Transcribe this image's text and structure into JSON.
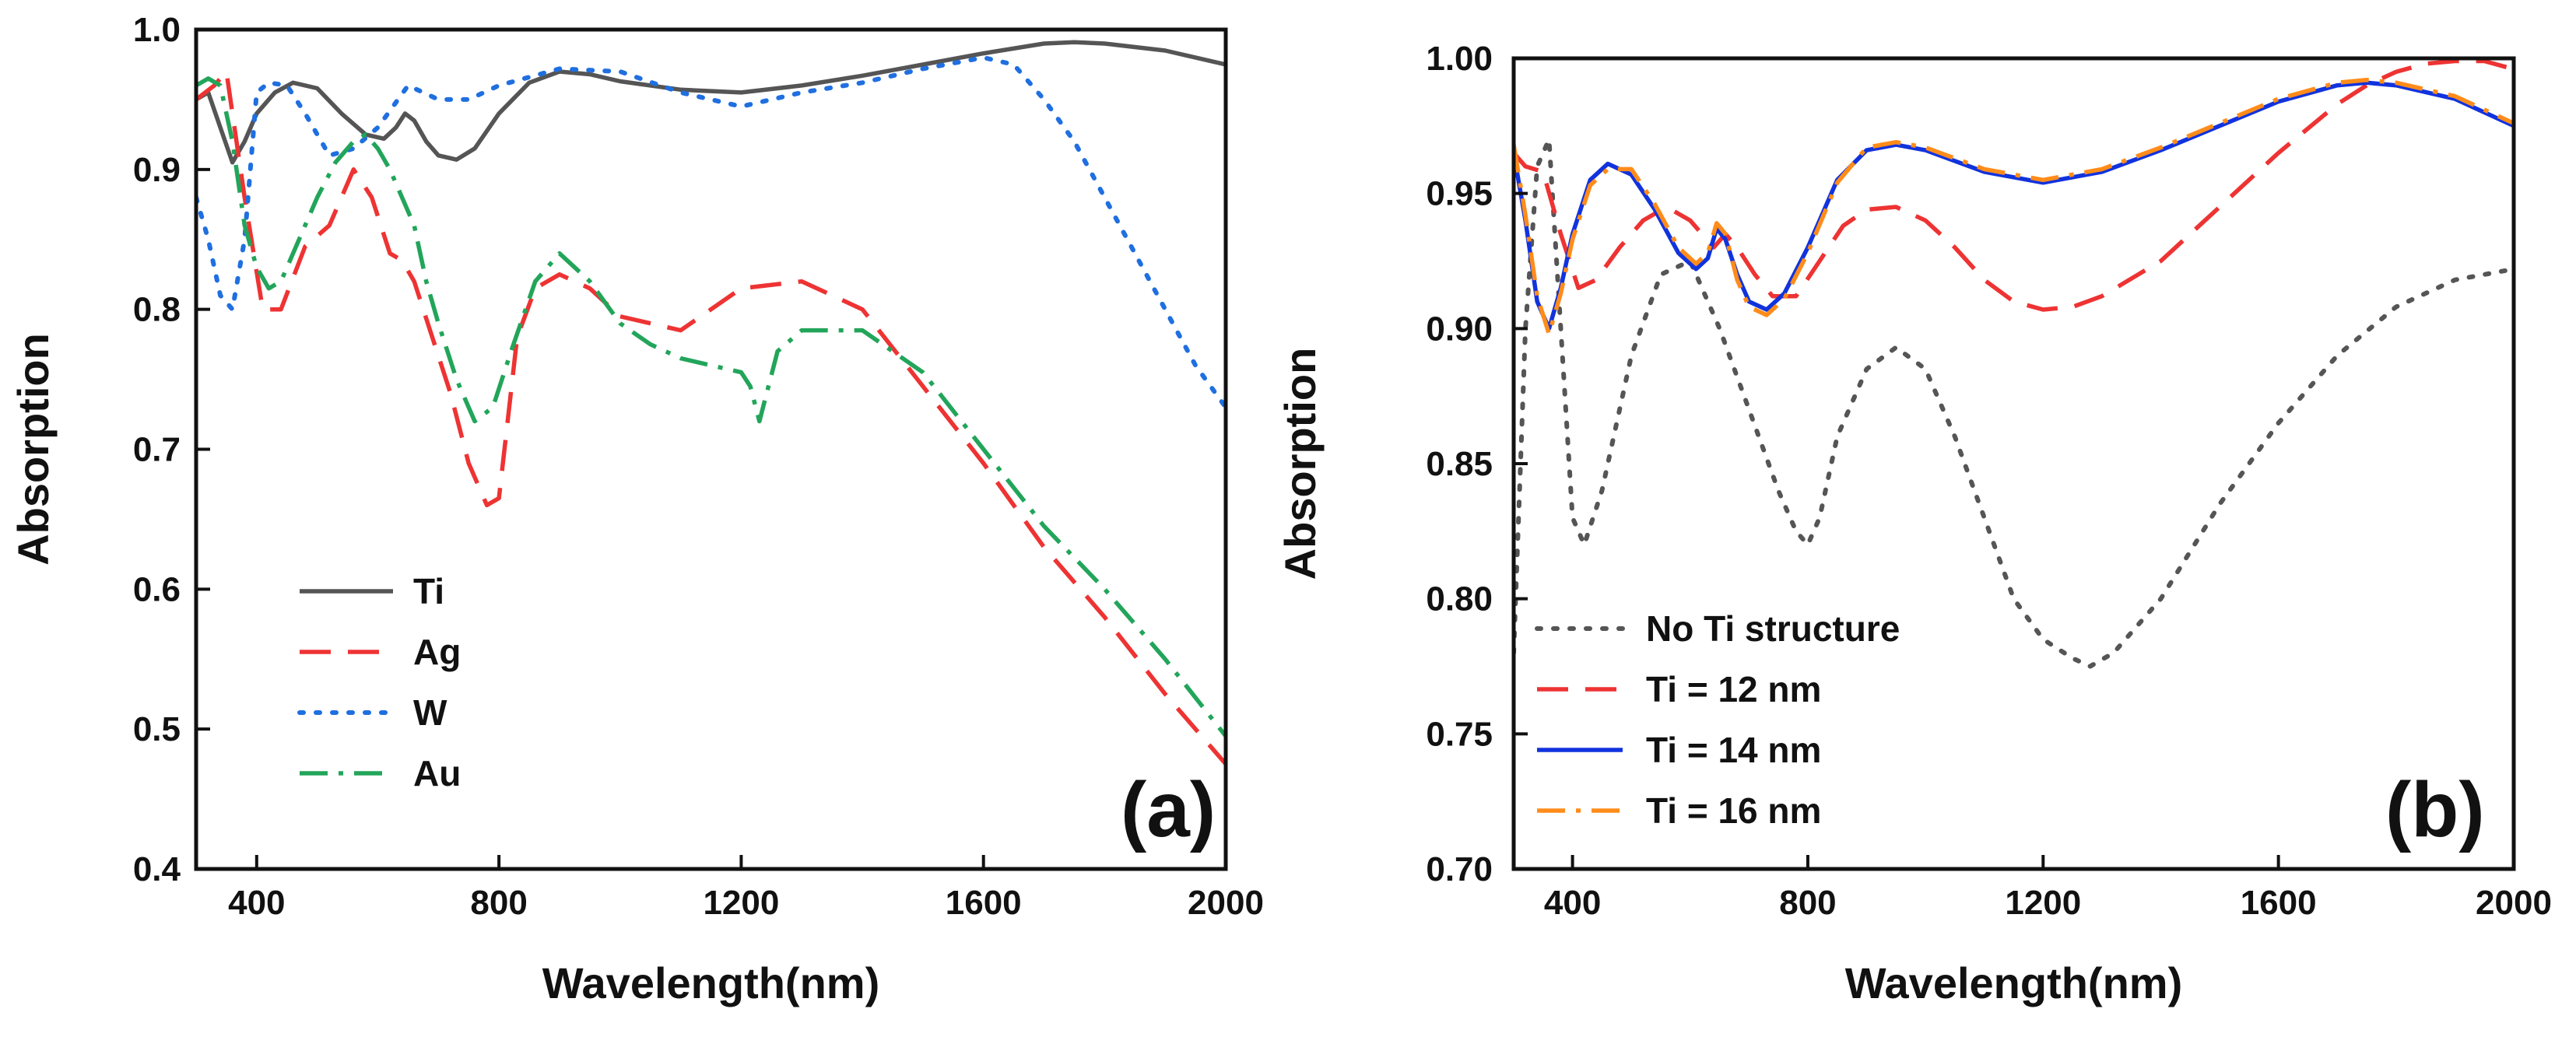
{
  "chart_data": [
    {
      "id": "a",
      "type": "line",
      "panel_label": "(a)",
      "xlabel": "Wavelength(nm)",
      "ylabel": "Absorption",
      "xlim": [
        300,
        2000
      ],
      "ylim": [
        0.4,
        1.0
      ],
      "xticks": [
        400,
        800,
        1200,
        1600,
        2000
      ],
      "xtick_labels": [
        "400",
        "800",
        "1200",
        "1600",
        "2000"
      ],
      "yticks": [
        0.4,
        0.5,
        0.6,
        0.7,
        0.8,
        0.9,
        1.0
      ],
      "ytick_labels": [
        "0.4",
        "0.5",
        "0.6",
        "0.7",
        "0.8",
        "0.9",
        "1.0"
      ],
      "legend_position": "bottom-left",
      "series": [
        {
          "name": "Ti",
          "color": "#555555",
          "dash": "solid",
          "x": [
            300,
            320,
            340,
            360,
            380,
            400,
            430,
            460,
            500,
            540,
            580,
            610,
            630,
            645,
            660,
            680,
            700,
            730,
            760,
            800,
            850,
            900,
            950,
            1000,
            1100,
            1200,
            1300,
            1400,
            1500,
            1600,
            1700,
            1750,
            1800,
            1900,
            2000
          ],
          "y": [
            0.95,
            0.955,
            0.93,
            0.905,
            0.92,
            0.94,
            0.955,
            0.962,
            0.958,
            0.94,
            0.925,
            0.922,
            0.93,
            0.94,
            0.935,
            0.92,
            0.91,
            0.907,
            0.915,
            0.94,
            0.962,
            0.97,
            0.968,
            0.963,
            0.957,
            0.955,
            0.96,
            0.967,
            0.975,
            0.983,
            0.99,
            0.991,
            0.99,
            0.985,
            0.975
          ]
        },
        {
          "name": "Ag",
          "color": "#ee3333",
          "dash": "long-dash",
          "x": [
            300,
            330,
            350,
            380,
            410,
            440,
            480,
            520,
            560,
            590,
            620,
            640,
            660,
            690,
            720,
            750,
            780,
            800,
            830,
            860,
            900,
            950,
            1000,
            1100,
            1200,
            1300,
            1400,
            1500,
            1600,
            1700,
            1800,
            1900,
            2000
          ],
          "y": [
            0.95,
            0.96,
            0.97,
            0.88,
            0.8,
            0.8,
            0.845,
            0.86,
            0.9,
            0.88,
            0.84,
            0.835,
            0.82,
            0.78,
            0.74,
            0.69,
            0.66,
            0.665,
            0.78,
            0.815,
            0.825,
            0.815,
            0.795,
            0.785,
            0.815,
            0.82,
            0.8,
            0.745,
            0.69,
            0.63,
            0.58,
            0.525,
            0.475
          ]
        },
        {
          "name": "W",
          "color": "#1f6fe0",
          "dash": "dotted",
          "x": [
            300,
            320,
            340,
            360,
            380,
            400,
            420,
            450,
            480,
            520,
            560,
            600,
            650,
            700,
            750,
            800,
            900,
            1000,
            1100,
            1200,
            1300,
            1400,
            1500,
            1600,
            1650,
            1700,
            1750,
            1800,
            1850,
            1900,
            1950,
            2000
          ],
          "y": [
            0.88,
            0.85,
            0.81,
            0.8,
            0.85,
            0.955,
            0.962,
            0.96,
            0.94,
            0.91,
            0.915,
            0.93,
            0.96,
            0.95,
            0.95,
            0.96,
            0.972,
            0.97,
            0.955,
            0.945,
            0.955,
            0.962,
            0.972,
            0.98,
            0.975,
            0.95,
            0.92,
            0.88,
            0.84,
            0.8,
            0.76,
            0.73
          ]
        },
        {
          "name": "Au",
          "color": "#22a55a",
          "dash": "dash-dot",
          "x": [
            300,
            320,
            340,
            360,
            380,
            400,
            420,
            440,
            470,
            500,
            530,
            560,
            580,
            600,
            620,
            640,
            660,
            680,
            700,
            730,
            760,
            790,
            820,
            860,
            900,
            950,
            1000,
            1050,
            1100,
            1150,
            1200,
            1215,
            1230,
            1260,
            1300,
            1400,
            1500,
            1600,
            1700,
            1800,
            1900,
            2000
          ],
          "y": [
            0.96,
            0.965,
            0.96,
            0.92,
            0.86,
            0.83,
            0.815,
            0.82,
            0.85,
            0.88,
            0.905,
            0.92,
            0.925,
            0.915,
            0.9,
            0.88,
            0.86,
            0.82,
            0.79,
            0.75,
            0.72,
            0.73,
            0.77,
            0.82,
            0.84,
            0.82,
            0.79,
            0.775,
            0.765,
            0.76,
            0.755,
            0.745,
            0.72,
            0.77,
            0.785,
            0.785,
            0.755,
            0.7,
            0.645,
            0.6,
            0.55,
            0.495
          ]
        }
      ]
    },
    {
      "id": "b",
      "type": "line",
      "panel_label": "(b)",
      "xlabel": "Wavelength(nm)",
      "ylabel": "Absorption",
      "xlim": [
        300,
        2000
      ],
      "ylim": [
        0.7,
        1.0
      ],
      "xticks": [
        400,
        800,
        1200,
        1600,
        2000
      ],
      "xtick_labels": [
        "400",
        "800",
        "1200",
        "1600",
        "2000"
      ],
      "yticks": [
        0.7,
        0.75,
        0.8,
        0.85,
        0.9,
        0.95,
        1.0
      ],
      "ytick_labels": [
        "0.70",
        "0.75",
        "0.80",
        "0.85",
        "0.90",
        "0.95",
        "1.00"
      ],
      "legend_position": "bottom-left",
      "series": [
        {
          "name": "No Ti structure",
          "color": "#555555",
          "dash": "dotted",
          "x": [
            300,
            320,
            340,
            360,
            380,
            400,
            420,
            450,
            500,
            550,
            600,
            650,
            700,
            750,
            780,
            800,
            820,
            850,
            900,
            950,
            1000,
            1050,
            1100,
            1150,
            1200,
            1250,
            1280,
            1320,
            1400,
            1500,
            1600,
            1700,
            1800,
            1900,
            2000
          ],
          "y": [
            0.78,
            0.9,
            0.96,
            0.97,
            0.9,
            0.83,
            0.82,
            0.84,
            0.89,
            0.92,
            0.925,
            0.9,
            0.87,
            0.84,
            0.825,
            0.82,
            0.83,
            0.86,
            0.885,
            0.893,
            0.885,
            0.86,
            0.83,
            0.8,
            0.785,
            0.778,
            0.775,
            0.78,
            0.8,
            0.835,
            0.865,
            0.89,
            0.908,
            0.918,
            0.922
          ]
        },
        {
          "name": "Ti = 12 nm",
          "color": "#ee3333",
          "dash": "long-dash",
          "x": [
            300,
            320,
            350,
            380,
            410,
            440,
            480,
            520,
            560,
            600,
            640,
            660,
            680,
            710,
            740,
            780,
            820,
            860,
            900,
            950,
            1000,
            1050,
            1100,
            1150,
            1200,
            1250,
            1300,
            1400,
            1500,
            1600,
            1700,
            1750,
            1800,
            1850,
            1900,
            1950,
            2000
          ],
          "y": [
            0.965,
            0.96,
            0.958,
            0.935,
            0.915,
            0.918,
            0.93,
            0.94,
            0.945,
            0.94,
            0.93,
            0.935,
            0.93,
            0.92,
            0.912,
            0.912,
            0.925,
            0.938,
            0.944,
            0.945,
            0.94,
            0.93,
            0.918,
            0.91,
            0.907,
            0.908,
            0.912,
            0.925,
            0.945,
            0.965,
            0.983,
            0.99,
            0.995,
            0.998,
            0.999,
            0.999,
            0.996
          ]
        },
        {
          "name": "Ti = 14 nm",
          "color": "#1133dd",
          "dash": "solid",
          "x": [
            300,
            320,
            340,
            360,
            380,
            400,
            430,
            460,
            500,
            540,
            580,
            610,
            630,
            645,
            660,
            680,
            700,
            730,
            760,
            800,
            850,
            900,
            950,
            1000,
            1100,
            1200,
            1300,
            1400,
            1500,
            1600,
            1700,
            1750,
            1800,
            1900,
            2000
          ],
          "y": [
            0.965,
            0.94,
            0.91,
            0.9,
            0.915,
            0.935,
            0.955,
            0.961,
            0.957,
            0.944,
            0.928,
            0.922,
            0.926,
            0.937,
            0.933,
            0.92,
            0.91,
            0.907,
            0.913,
            0.93,
            0.955,
            0.966,
            0.968,
            0.966,
            0.958,
            0.954,
            0.958,
            0.966,
            0.975,
            0.984,
            0.99,
            0.991,
            0.99,
            0.985,
            0.975
          ]
        },
        {
          "name": "Ti = 16 nm",
          "color": "#ff8c1a",
          "dash": "dash-dot",
          "x": [
            300,
            320,
            340,
            360,
            380,
            400,
            430,
            460,
            500,
            540,
            580,
            610,
            630,
            645,
            660,
            680,
            700,
            730,
            760,
            800,
            850,
            900,
            950,
            1000,
            1100,
            1200,
            1300,
            1400,
            1500,
            1600,
            1700,
            1750,
            1800,
            1900,
            2000
          ],
          "y": [
            0.968,
            0.942,
            0.912,
            0.898,
            0.913,
            0.933,
            0.953,
            0.959,
            0.959,
            0.946,
            0.93,
            0.924,
            0.928,
            0.939,
            0.935,
            0.918,
            0.908,
            0.905,
            0.911,
            0.928,
            0.954,
            0.967,
            0.969,
            0.967,
            0.959,
            0.955,
            0.959,
            0.967,
            0.976,
            0.985,
            0.991,
            0.992,
            0.991,
            0.986,
            0.976
          ]
        }
      ]
    }
  ]
}
